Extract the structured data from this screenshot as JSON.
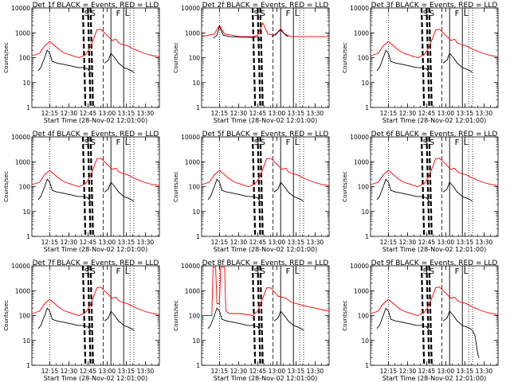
{
  "chart_data": [
    {
      "type": "line",
      "title": "Det 1f BLACK = Events, RED = LLD",
      "xlabel": "Start Time (28-Nov-02 12:01:00)",
      "ylabel": "Counts/sec",
      "series_kind": "normal"
    },
    {
      "type": "line",
      "title": "Det 2f BLACK = Events, RED = LLD",
      "xlabel": "Start Time (28-Nov-02 12:01:00)",
      "ylabel": "Counts/sec",
      "series_kind": "flat"
    },
    {
      "type": "line",
      "title": "Det 3f BLACK = Events, RED = LLD",
      "xlabel": "Start Time (28-Nov-02 12:01:00)",
      "ylabel": "Counts/sec",
      "series_kind": "normal"
    },
    {
      "type": "line",
      "title": "Det 4f BLACK = Events, RED = LLD",
      "xlabel": "Start Time (28-Nov-02 12:01:00)",
      "ylabel": "Counts/sec",
      "series_kind": "normal"
    },
    {
      "type": "line",
      "title": "Det 5f BLACK = Events, RED = LLD",
      "xlabel": "Start Time (28-Nov-02 12:01:00)",
      "ylabel": "Counts/sec",
      "series_kind": "normal"
    },
    {
      "type": "line",
      "title": "Det 6f BLACK = Events, RED = LLD",
      "xlabel": "Start Time (28-Nov-02 12:01:00)",
      "ylabel": "Counts/sec",
      "series_kind": "normal"
    },
    {
      "type": "line",
      "title": "Det 7f BLACK = Events, RED = LLD",
      "xlabel": "Start Time (28-Nov-02 12:01:00)",
      "ylabel": "Counts/sec",
      "series_kind": "normal"
    },
    {
      "type": "line",
      "title": "Det 8f BLACK = Events, RED = LLD",
      "xlabel": "Start Time (28-Nov-02 12:01:00)",
      "ylabel": "Counts/sec",
      "series_kind": "spiky"
    },
    {
      "type": "line",
      "title": "Det 9f BLACK = Events, RED = LLD",
      "xlabel": "Start Time (28-Nov-02 12:01:00)",
      "ylabel": "Counts/sec",
      "series_kind": "normal"
    }
  ],
  "shared": {
    "x_ticks": [
      "12:15",
      "12:30",
      "12:45",
      "13:00",
      "13:15",
      "13:30"
    ],
    "x_tick_minutes": [
      14,
      29,
      44,
      59,
      74,
      89
    ],
    "x_range_minutes": [
      0,
      100
    ],
    "y_ticks": [
      "10000",
      "1000",
      "100",
      "10",
      "1"
    ],
    "y_tick_values": [
      10000,
      1000,
      100,
      10,
      1
    ],
    "y_range": [
      1,
      10000
    ],
    "y_scale": "log",
    "markers": {
      "S": "S",
      "F": "F",
      "L": "L"
    },
    "colors": {
      "events": "#000000",
      "lld": "#ff0000"
    },
    "lld_curve": [
      [
        0,
        120
      ],
      [
        6,
        150
      ],
      [
        10,
        300
      ],
      [
        14,
        450
      ],
      [
        18,
        300
      ],
      [
        22,
        200
      ],
      [
        26,
        150
      ],
      [
        30,
        130
      ],
      [
        34,
        110
      ],
      [
        37,
        100
      ],
      [
        42,
        130
      ],
      [
        45,
        220
      ],
      [
        48,
        500
      ],
      [
        51,
        1300
      ],
      [
        54,
        1400
      ],
      [
        57,
        1000
      ],
      [
        60,
        700
      ],
      [
        63,
        500
      ],
      [
        66,
        550
      ],
      [
        68,
        400
      ],
      [
        70,
        350
      ],
      [
        75,
        300
      ],
      [
        80,
        220
      ],
      [
        88,
        150
      ],
      [
        95,
        120
      ],
      [
        100,
        110
      ]
    ],
    "events_curve": [
      [
        5,
        30
      ],
      [
        7,
        40
      ],
      [
        10,
        100
      ],
      [
        12,
        200
      ],
      [
        14,
        150
      ],
      [
        16,
        70
      ],
      [
        20,
        60
      ],
      [
        24,
        55
      ],
      [
        28,
        50
      ],
      [
        32,
        45
      ],
      [
        36,
        40
      ],
      [
        40,
        40
      ],
      [
        44,
        35
      ],
      [
        46,
        25
      ],
      [
        47,
        25
      ]
    ],
    "events_curve_b": [
      [
        57,
        60
      ],
      [
        60,
        80
      ],
      [
        62,
        150
      ],
      [
        65,
        100
      ],
      [
        68,
        60
      ],
      [
        70,
        50
      ],
      [
        72,
        40
      ],
      [
        75,
        35
      ],
      [
        78,
        30
      ],
      [
        80,
        25
      ]
    ],
    "flat_lld": [
      [
        0,
        700
      ],
      [
        10,
        900
      ],
      [
        14,
        2000
      ],
      [
        18,
        900
      ],
      [
        30,
        700
      ],
      [
        40,
        700
      ],
      [
        44,
        800
      ],
      [
        48,
        2500
      ],
      [
        52,
        900
      ],
      [
        58,
        800
      ],
      [
        62,
        1500
      ],
      [
        65,
        900
      ],
      [
        70,
        700
      ],
      [
        100,
        700
      ]
    ],
    "flat_events": [
      [
        9,
        600
      ],
      [
        12,
        800
      ],
      [
        14,
        1800
      ],
      [
        17,
        800
      ],
      [
        22,
        700
      ],
      [
        40,
        650
      ],
      [
        44,
        700
      ],
      [
        46,
        500
      ]
    ],
    "flat_events_b": [
      [
        55,
        700
      ],
      [
        58,
        900
      ],
      [
        62,
        1300
      ],
      [
        66,
        800
      ],
      [
        68,
        700
      ]
    ],
    "spike_lld": [
      [
        0,
        100
      ],
      [
        8,
        100
      ],
      [
        9,
        9000
      ],
      [
        11,
        9000
      ],
      [
        12,
        300
      ],
      [
        14,
        300
      ],
      [
        15,
        9000
      ],
      [
        18,
        9000
      ],
      [
        19,
        150
      ],
      [
        22,
        120
      ],
      [
        30,
        120
      ],
      [
        40,
        100
      ],
      [
        44,
        150
      ],
      [
        48,
        500
      ],
      [
        51,
        1300
      ],
      [
        54,
        1300
      ],
      [
        57,
        900
      ],
      [
        60,
        600
      ],
      [
        66,
        500
      ],
      [
        70,
        350
      ],
      [
        80,
        250
      ],
      [
        100,
        150
      ]
    ],
    "tail_black": [
      [
        80,
        25
      ],
      [
        82,
        15
      ],
      [
        84,
        3
      ],
      [
        85,
        2
      ]
    ],
    "dotted_minutes": [
      14,
      77,
      80
    ],
    "dashed_thick_minutes": [
      40,
      44,
      46
    ],
    "dashed_thin_minutes": [
      56
    ],
    "solid_minutes": [
      62,
      72
    ]
  }
}
